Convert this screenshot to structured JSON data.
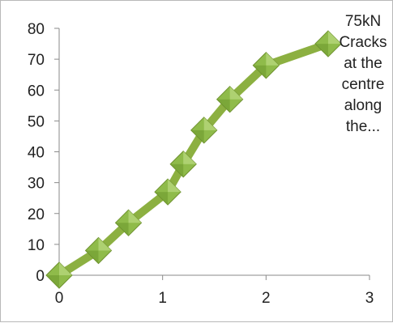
{
  "chart_data": {
    "type": "line",
    "title": "",
    "xlabel": "",
    "ylabel": "",
    "xlim": [
      0,
      3
    ],
    "ylim": [
      0,
      80
    ],
    "x_ticks": [
      "0",
      "1",
      "2",
      "3"
    ],
    "y_ticks": [
      "0",
      "10",
      "20",
      "30",
      "40",
      "50",
      "60",
      "70",
      "80"
    ],
    "grid": false,
    "series": [
      {
        "color": "#8cb041",
        "marker": "diamond",
        "marker_color": "#8fbb4a",
        "x": [
          0,
          0.38,
          0.67,
          1.05,
          1.2,
          1.4,
          1.65,
          2.0,
          2.6
        ],
        "y": [
          0,
          8,
          17,
          27,
          36,
          47,
          57,
          68,
          75
        ]
      }
    ],
    "annotation": {
      "lines": [
        "75kN",
        "Cracks",
        "at the",
        "centre",
        "along",
        "the..."
      ]
    }
  }
}
